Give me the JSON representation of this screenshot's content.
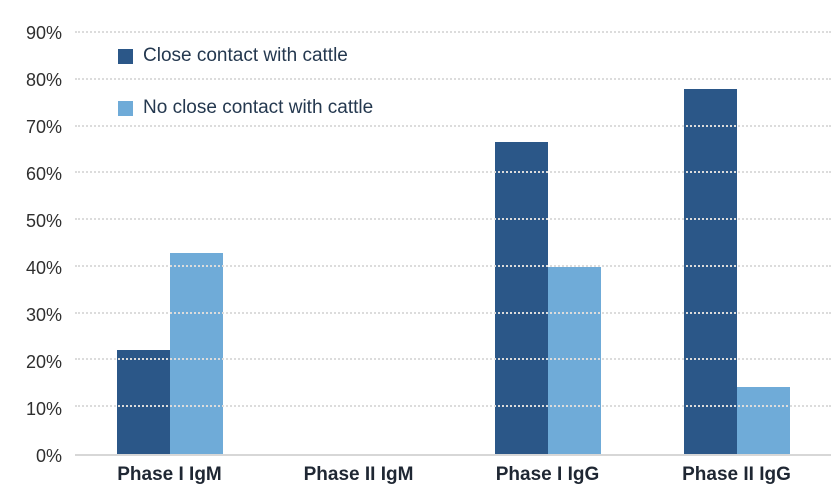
{
  "chart_data": {
    "type": "bar",
    "title": "",
    "categories": [
      "Phase I IgM",
      "Phase II IgM",
      "Phase I IgG",
      "Phase II IgG"
    ],
    "series": [
      {
        "name": "Close contact with cattle",
        "color": "#2B5788",
        "values": [
          22.2,
          0,
          66.7,
          78.0
        ]
      },
      {
        "name": "No close contact with cattle",
        "color": "#6FABD8",
        "values": [
          42.9,
          0,
          40.0,
          14.3
        ]
      }
    ],
    "xlabel": "",
    "ylabel": "",
    "ylim": [
      0,
      90
    ],
    "ytick_step": 10,
    "ytick_labels": [
      "0%",
      "10%",
      "20%",
      "30%",
      "40%",
      "50%",
      "60%",
      "70%",
      "80%",
      "90%"
    ],
    "grid": "horizontal-dotted",
    "legend_position": "top-left-inside"
  },
  "colors": {
    "background": "#ffffff",
    "gridline": "#dcdcdc",
    "axis_line": "#d7d7d7",
    "tick_label": "#2f2f2f",
    "category_label": "#1f2733",
    "legend_text": "#24384f"
  }
}
